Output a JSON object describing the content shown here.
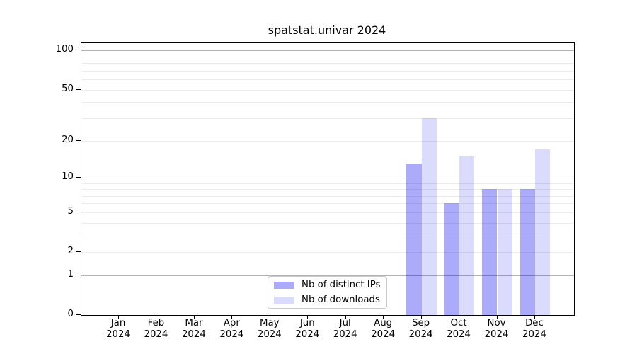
{
  "title": "spatstat.univar 2024",
  "chart_data": {
    "type": "bar",
    "title": "spatstat.univar 2024",
    "categories": [
      "Jan",
      "Feb",
      "Mar",
      "Apr",
      "May",
      "Jun",
      "Jul",
      "Aug",
      "Sep",
      "Oct",
      "Nov",
      "Dec"
    ],
    "year_label": "2024",
    "series": [
      {
        "name": "Nb of distinct IPs",
        "color": "rgba(10,10,240,0.34)",
        "values": [
          0,
          0,
          0,
          0,
          0,
          0,
          0,
          0,
          13,
          6,
          8,
          8
        ]
      },
      {
        "name": "Nb of downloads",
        "color": "rgba(10,10,240,0.145)",
        "values": [
          0,
          0,
          0,
          0,
          0,
          0,
          0,
          0,
          30,
          15,
          8,
          17
        ]
      }
    ],
    "yscale": "log1p",
    "ylim": [
      0,
      114
    ],
    "ytick_values": [
      0,
      1,
      2,
      5,
      10,
      20,
      50,
      100
    ],
    "grid_major_values": [
      1,
      10,
      100
    ],
    "grid_minor_values": [
      2,
      3,
      4,
      5,
      6,
      7,
      8,
      9,
      20,
      30,
      40,
      50,
      60,
      70,
      80,
      90
    ],
    "xlabel": "",
    "ylabel": "",
    "grid": "on",
    "legend_position": "lower center"
  }
}
